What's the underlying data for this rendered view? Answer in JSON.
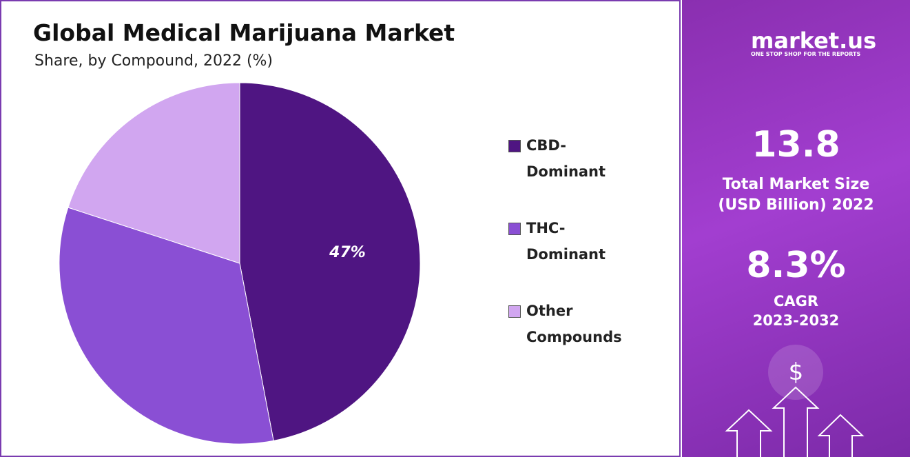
{
  "chart_data": {
    "type": "pie",
    "title": "Global Medical Marijuana Market",
    "subtitle": "Share, by Compound, 2022 (%)",
    "categories": [
      "CBD-Dominant",
      "THC-Dominant",
      "Other Compounds"
    ],
    "values": [
      47,
      33,
      20
    ],
    "value_labels": [
      "47%",
      null,
      null
    ],
    "colors": [
      "#4f1582",
      "#8a4fd4",
      "#d1a6f0"
    ]
  },
  "side_panel": {
    "brand": "market.us",
    "tagline": "ONE STOP SHOP FOR THE REPORTS",
    "market_size": "13.8",
    "market_size_label_1": "Total Market Size",
    "market_size_label_2": "(USD Billion) 2022",
    "cagr": "8.3%",
    "cagr_label": "CAGR",
    "cagr_period": "2023-2032",
    "icon_text": "$"
  }
}
